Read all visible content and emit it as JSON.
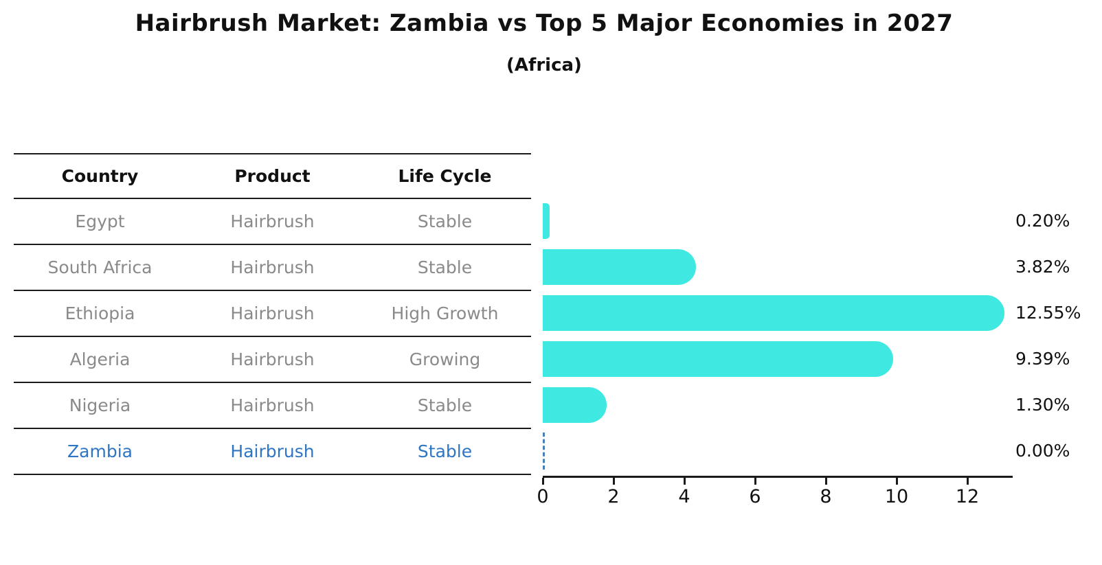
{
  "title": "Hairbrush Market: Zambia vs Top 5 Major Economies in 2027",
  "subtitle": "(Africa)",
  "table": {
    "headers": [
      "Country",
      "Product",
      "Life Cycle"
    ],
    "rows": [
      {
        "country": "Egypt",
        "product": "Hairbrush",
        "life_cycle": "Stable",
        "highlight": false
      },
      {
        "country": "South Africa",
        "product": "Hairbrush",
        "life_cycle": "Stable",
        "highlight": false
      },
      {
        "country": "Ethiopia",
        "product": "Hairbrush",
        "life_cycle": "High Growth",
        "highlight": false
      },
      {
        "country": "Algeria",
        "product": "Hairbrush",
        "life_cycle": "Growing",
        "highlight": false
      },
      {
        "country": "Nigeria",
        "product": "Hairbrush",
        "life_cycle": "Stable",
        "highlight": false
      },
      {
        "country": "Zambia",
        "product": "Hairbrush",
        "life_cycle": "Stable",
        "highlight": true
      }
    ]
  },
  "chart_data": {
    "type": "bar",
    "orientation": "horizontal",
    "categories": [
      "Egypt",
      "South Africa",
      "Ethiopia",
      "Algeria",
      "Nigeria",
      "Zambia"
    ],
    "values": [
      0.2,
      3.82,
      12.55,
      9.39,
      1.3,
      0.0
    ],
    "value_labels": [
      "0.20%",
      "3.82%",
      "12.55%",
      "9.39%",
      "1.30%",
      "0.00%"
    ],
    "xlabel": "",
    "ylabel": "",
    "xlim": [
      0,
      13.3
    ],
    "xticks": [
      "0",
      "2",
      "4",
      "6",
      "8",
      "10",
      "12"
    ],
    "xtick_values": [
      0,
      2,
      4,
      6,
      8,
      10,
      12
    ],
    "grid": false,
    "legend": "none",
    "bar_color": "#3fe8e0",
    "highlight_text_color": "#2e75c3",
    "zero_marker_style": "dashed-blue-line"
  }
}
